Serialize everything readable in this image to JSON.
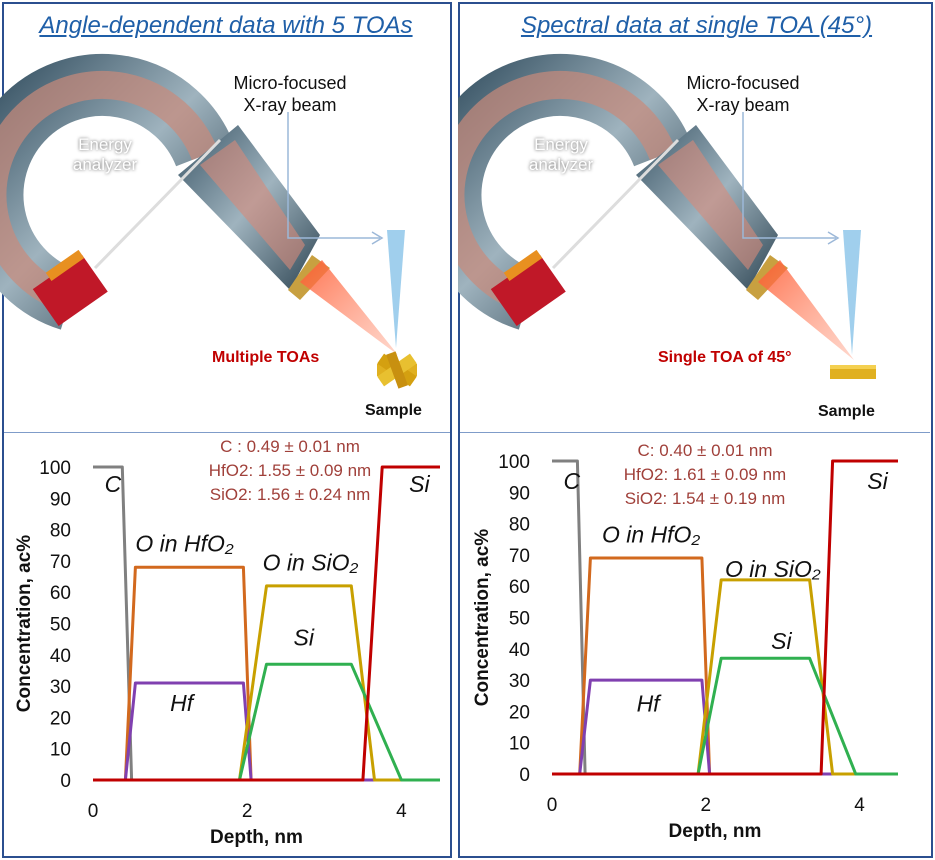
{
  "left": {
    "title": "Angle-dependent data with 5 TOAs",
    "beam_label": "Micro-focused X-ray beam",
    "analyzer_label": "Energy analyzer",
    "toa_label": "Multiple TOAs",
    "sample_label": "Sample"
  },
  "right": {
    "title": "Spectral data at single TOA (45°)",
    "beam_label": "Micro-focused X-ray beam",
    "analyzer_label": "Energy analyzer",
    "toa_label": "Single TOA of 45°",
    "sample_label": "Sample"
  },
  "chart_data": [
    {
      "type": "line",
      "xlabel": "Depth, nm",
      "ylabel": "Concentration, ac%",
      "xlim": [
        0,
        4.5
      ],
      "ylim": [
        0,
        100
      ],
      "xticks": [
        "0",
        "2",
        "4"
      ],
      "yticks": [
        "0",
        "10",
        "20",
        "30",
        "40",
        "50",
        "60",
        "70",
        "80",
        "90",
        "100"
      ],
      "annotations": [
        "C : 0.49 ± 0.01 nm",
        "HfO2: 1.55 ± 0.09 nm",
        "SiO2: 1.56 ± 0.24 nm"
      ],
      "series": [
        {
          "name": "C",
          "color": "#808080",
          "points": [
            [
              0,
              100
            ],
            [
              0.38,
              100
            ],
            [
              0.5,
              0
            ],
            [
              4.5,
              0
            ]
          ]
        },
        {
          "name": "O in HfO2",
          "color": "#d2691e",
          "points": [
            [
              0,
              0
            ],
            [
              0.42,
              0
            ],
            [
              0.55,
              68
            ],
            [
              1.95,
              68
            ],
            [
              2.05,
              0
            ],
            [
              4.5,
              0
            ]
          ]
        },
        {
          "name": "Hf",
          "color": "#8040b0",
          "points": [
            [
              0,
              0
            ],
            [
              0.42,
              0
            ],
            [
              0.55,
              31
            ],
            [
              1.95,
              31
            ],
            [
              2.05,
              0
            ],
            [
              4.5,
              0
            ]
          ]
        },
        {
          "name": "O in SiO2",
          "color": "#c8a000",
          "points": [
            [
              0,
              0
            ],
            [
              1.9,
              0
            ],
            [
              2.25,
              62
            ],
            [
              3.35,
              62
            ],
            [
              3.65,
              0
            ],
            [
              4.5,
              0
            ]
          ]
        },
        {
          "name": "Si",
          "color": "#30b050",
          "points": [
            [
              0,
              0
            ],
            [
              1.9,
              0
            ],
            [
              2.25,
              37
            ],
            [
              3.35,
              37
            ],
            [
              4.0,
              0
            ],
            [
              4.5,
              0
            ]
          ]
        },
        {
          "name": "Si",
          "color": "#c00000",
          "points": [
            [
              0,
              0
            ],
            [
              3.5,
              0
            ],
            [
              3.75,
              100
            ],
            [
              4.5,
              100
            ]
          ]
        }
      ],
      "series_labels": [
        {
          "text": "C",
          "x": 0.15,
          "y": 92
        },
        {
          "text": "O in HfO₂",
          "x": 0.55,
          "y": 73
        },
        {
          "text": "Hf",
          "x": 1.0,
          "y": 22
        },
        {
          "text": "O in SiO₂",
          "x": 2.2,
          "y": 67
        },
        {
          "text": "Si",
          "x": 2.6,
          "y": 43
        },
        {
          "text": "Si",
          "x": 4.1,
          "y": 92
        }
      ]
    },
    {
      "type": "line",
      "xlabel": "Depth, nm",
      "ylabel": "Concentration, ac%",
      "xlim": [
        0,
        4.5
      ],
      "ylim": [
        0,
        100
      ],
      "xticks": [
        "0",
        "2",
        "4"
      ],
      "yticks": [
        "0",
        "10",
        "20",
        "30",
        "40",
        "50",
        "60",
        "70",
        "80",
        "90",
        "100"
      ],
      "annotations": [
        "C: 0.40 ± 0.01 nm",
        "HfO2: 1.61 ± 0.09 nm",
        "SiO2: 1.54 ± 0.19 nm"
      ],
      "series": [
        {
          "name": "C",
          "color": "#808080",
          "points": [
            [
              0,
              100
            ],
            [
              0.33,
              100
            ],
            [
              0.43,
              0
            ],
            [
              4.5,
              0
            ]
          ]
        },
        {
          "name": "O in HfO2",
          "color": "#d2691e",
          "points": [
            [
              0,
              0
            ],
            [
              0.36,
              0
            ],
            [
              0.5,
              69
            ],
            [
              1.95,
              69
            ],
            [
              2.05,
              0
            ],
            [
              4.5,
              0
            ]
          ]
        },
        {
          "name": "Hf",
          "color": "#8040b0",
          "points": [
            [
              0,
              0
            ],
            [
              0.36,
              0
            ],
            [
              0.5,
              30
            ],
            [
              1.95,
              30
            ],
            [
              2.05,
              0
            ],
            [
              4.5,
              0
            ]
          ]
        },
        {
          "name": "O in SiO2",
          "color": "#c8a000",
          "points": [
            [
              0,
              0
            ],
            [
              1.9,
              0
            ],
            [
              2.2,
              62
            ],
            [
              3.35,
              62
            ],
            [
              3.65,
              0
            ],
            [
              4.5,
              0
            ]
          ]
        },
        {
          "name": "Si",
          "color": "#30b050",
          "points": [
            [
              0,
              0
            ],
            [
              1.9,
              0
            ],
            [
              2.2,
              37
            ],
            [
              3.35,
              37
            ],
            [
              3.95,
              0
            ],
            [
              4.5,
              0
            ]
          ]
        },
        {
          "name": "Si",
          "color": "#c00000",
          "points": [
            [
              0,
              0
            ],
            [
              3.5,
              0
            ],
            [
              3.65,
              100
            ],
            [
              4.5,
              100
            ]
          ]
        }
      ],
      "series_labels": [
        {
          "text": "C",
          "x": 0.15,
          "y": 91
        },
        {
          "text": "O in HfO₂",
          "x": 0.65,
          "y": 74
        },
        {
          "text": "Hf",
          "x": 1.1,
          "y": 20
        },
        {
          "text": "O in SiO₂",
          "x": 2.25,
          "y": 63
        },
        {
          "text": "Si",
          "x": 2.85,
          "y": 40
        },
        {
          "text": "Si",
          "x": 4.1,
          "y": 91
        }
      ]
    }
  ]
}
